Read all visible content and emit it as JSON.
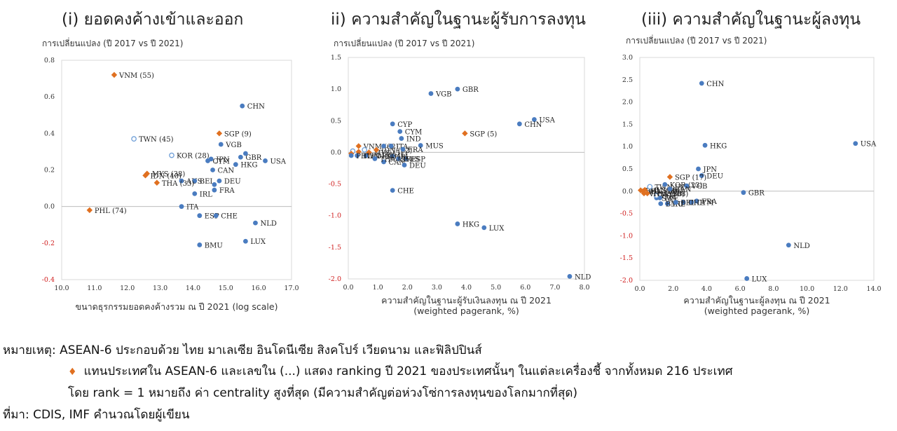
{
  "chart_data": [
    {
      "type": "scatter",
      "title": "(i) ยอดคงค้างเข้าและออก",
      "ylabel": "การเปลี่ยนแปลง (ปี 2017 vs ปี 2021)",
      "xlabel": "ขนาดธุรกรรมยอดคงค้างรวม ณ ปี 2021 (log scale)",
      "xlabel2": "",
      "xlim": [
        10,
        17
      ],
      "ylim": [
        -0.4,
        0.8
      ],
      "xticks": [
        "10.0",
        "11.0",
        "12.0",
        "13.0",
        "14.0",
        "15.0",
        "16.0",
        "17.0"
      ],
      "yticks": [
        "0.8",
        "0.6",
        "0.4",
        "0.2",
        "0.0",
        "-0.2",
        "-0.4"
      ],
      "grid": false,
      "points": [
        {
          "label": "VNM (55)",
          "x": 11.6,
          "y": 0.72,
          "style": "asean"
        },
        {
          "label": "CHN",
          "x": 15.5,
          "y": 0.55,
          "style": "filled"
        },
        {
          "label": "TWN (45)",
          "x": 12.2,
          "y": 0.37,
          "style": "hollow"
        },
        {
          "label": "KOR (28)",
          "x": 13.35,
          "y": 0.28,
          "style": "hollow"
        },
        {
          "label": "SGP (9)",
          "x": 14.8,
          "y": 0.4,
          "style": "asean"
        },
        {
          "label": "JPN",
          "x": 14.55,
          "y": 0.26,
          "style": "filled"
        },
        {
          "label": "CYM",
          "x": 14.45,
          "y": 0.25,
          "style": "filled"
        },
        {
          "label": "VGB",
          "x": 14.85,
          "y": 0.34,
          "style": "filled"
        },
        {
          "label": "GBR",
          "x": 15.45,
          "y": 0.27,
          "style": "filled"
        },
        {
          "label": "",
          "x": 15.6,
          "y": 0.29,
          "style": "filled"
        },
        {
          "label": "USA",
          "x": 16.2,
          "y": 0.25,
          "style": "filled"
        },
        {
          "label": "HKG",
          "x": 15.3,
          "y": 0.23,
          "style": "filled"
        },
        {
          "label": "CAN",
          "x": 14.6,
          "y": 0.2,
          "style": "filled"
        },
        {
          "label": "MYS (38)",
          "x": 12.6,
          "y": 0.18,
          "style": "asean"
        },
        {
          "label": "IDN (40)",
          "x": 12.55,
          "y": 0.17,
          "style": "asean"
        },
        {
          "label": "AUS",
          "x": 13.65,
          "y": 0.14,
          "style": "filled"
        },
        {
          "label": "BEL",
          "x": 14.05,
          "y": 0.14,
          "style": "filled"
        },
        {
          "label": "DEU",
          "x": 14.8,
          "y": 0.14,
          "style": "filled"
        },
        {
          "label": "",
          "x": 14.65,
          "y": 0.12,
          "style": "filled"
        },
        {
          "label": "FRA",
          "x": 14.65,
          "y": 0.09,
          "style": "filled"
        },
        {
          "label": "THA (33)",
          "x": 12.9,
          "y": 0.13,
          "style": "asean"
        },
        {
          "label": "IRL",
          "x": 14.05,
          "y": 0.07,
          "style": "filled"
        },
        {
          "label": "ITA",
          "x": 13.65,
          "y": 0.0,
          "style": "filled"
        },
        {
          "label": "PHL (74)",
          "x": 10.85,
          "y": -0.02,
          "style": "asean"
        },
        {
          "label": "ESP",
          "x": 14.2,
          "y": -0.05,
          "style": "filled"
        },
        {
          "label": "CHE",
          "x": 14.7,
          "y": -0.05,
          "style": "filled"
        },
        {
          "label": "NLD",
          "x": 15.9,
          "y": -0.09,
          "style": "filled"
        },
        {
          "label": "BMU",
          "x": 14.2,
          "y": -0.21,
          "style": "filled"
        },
        {
          "label": "LUX",
          "x": 15.6,
          "y": -0.19,
          "style": "filled"
        }
      ]
    },
    {
      "type": "scatter",
      "title": "ii) ความสำคัญในฐานะผู้รับการลงทุน",
      "ylabel": "การเปลี่ยนแปลง (ปี 2017 vs ปี 2021)",
      "xlabel": "ความสำคัญในฐานะผู้รับเงินลงทุน ณ ปี 2021",
      "xlabel2": "(weighted pagerank, %)",
      "xlim": [
        0,
        8
      ],
      "ylim": [
        -2,
        1.5
      ],
      "xticks": [
        "0.0",
        "1.0",
        "2.0",
        "3.0",
        "4.0",
        "5.0",
        "6.0",
        "7.0",
        "8.0"
      ],
      "yticks": [
        "1.5",
        "1.0",
        "0.5",
        "0.0",
        "-0.5",
        "-1.0",
        "-1.5",
        "-2.0"
      ],
      "grid": false,
      "points": [
        {
          "label": "VNM (62)",
          "x": 0.35,
          "y": 0.1,
          "style": "asean"
        },
        {
          "label": "MYS (51)",
          "x": 0.7,
          "y": 0.0,
          "style": "asean"
        },
        {
          "label": "IDN (32)",
          "x": 0.95,
          "y": 0.04,
          "style": "asean"
        },
        {
          "label": "",
          "x": 0.55,
          "y": 0.04,
          "style": "hollow"
        },
        {
          "label": "",
          "x": 0.15,
          "y": 0.02,
          "style": "hollow"
        },
        {
          "label": "",
          "x": 0.35,
          "y": 0.01,
          "style": "asean"
        },
        {
          "label": "",
          "x": 0.1,
          "y": -0.02,
          "style": "asean"
        },
        {
          "label": "CYP",
          "x": 1.5,
          "y": 0.45,
          "style": "filled"
        },
        {
          "label": "CYM",
          "x": 1.75,
          "y": 0.33,
          "style": "filled"
        },
        {
          "label": "ITA",
          "x": 1.45,
          "y": 0.1,
          "style": "filled"
        },
        {
          "label": "IND",
          "x": 1.8,
          "y": 0.22,
          "style": "filled"
        },
        {
          "label": "MUS",
          "x": 2.45,
          "y": 0.11,
          "style": "filled"
        },
        {
          "label": "VGB",
          "x": 2.8,
          "y": 0.93,
          "style": "filled"
        },
        {
          "label": "GBR",
          "x": 3.7,
          "y": 1.0,
          "style": "filled"
        },
        {
          "label": "SGP (5)",
          "x": 3.95,
          "y": 0.3,
          "style": "asean"
        },
        {
          "label": "USA",
          "x": 6.3,
          "y": 0.52,
          "style": "filled"
        },
        {
          "label": "CHN",
          "x": 5.8,
          "y": 0.45,
          "style": "filled"
        },
        {
          "label": "FRA",
          "x": 1.85,
          "y": 0.05,
          "style": "filled"
        },
        {
          "label": "ESP",
          "x": 1.95,
          "y": -0.1,
          "style": "filled"
        },
        {
          "label": "",
          "x": 1.2,
          "y": 0.1,
          "style": "filled"
        },
        {
          "label": "IRL",
          "x": 1.5,
          "y": -0.06,
          "style": "filled"
        },
        {
          "label": "RUS",
          "x": 1.7,
          "y": -0.1,
          "style": "filled"
        },
        {
          "label": "CAN",
          "x": 1.2,
          "y": -0.15,
          "style": "filled"
        },
        {
          "label": "CHE",
          "x": 1.5,
          "y": -0.6,
          "style": "filled"
        },
        {
          "label": "DEU",
          "x": 1.9,
          "y": -0.2,
          "style": "filled"
        },
        {
          "label": "KOR (34)",
          "x": 0.6,
          "y": -0.05,
          "style": "filled"
        },
        {
          "label": "TWN (92)",
          "x": 0.3,
          "y": -0.05,
          "style": "filled"
        },
        {
          "label": "PHL (111)",
          "x": 0.1,
          "y": -0.05,
          "style": "filled"
        },
        {
          "label": "THA (25)",
          "x": 0.9,
          "y": -0.1,
          "style": "filled"
        },
        {
          "label": "HKG",
          "x": 3.7,
          "y": -1.13,
          "style": "filled"
        },
        {
          "label": "LUX",
          "x": 4.6,
          "y": -1.19,
          "style": "filled"
        },
        {
          "label": "NLD",
          "x": 7.5,
          "y": -1.96,
          "style": "filled"
        }
      ]
    },
    {
      "type": "scatter",
      "title": "(iii) ความสำคัญในฐานะผู้ลงทุน",
      "ylabel": "การเปลี่ยนแปลง (ปี 2017 vs ปี 2021)",
      "xlabel": "ความสำคัญในฐานะผู้ลงทุน ณ ปี 2021",
      "xlabel2": "(weighted pagerank, %)",
      "xlim": [
        0,
        14
      ],
      "ylim": [
        -2,
        3
      ],
      "xticks": [
        "0.0",
        "2.0",
        "4.0",
        "6.0",
        "8.0",
        "10.0",
        "12.0",
        "14.0"
      ],
      "yticks": [
        "3.0",
        "2.5",
        "2.0",
        "1.5",
        "1.0",
        "0.5",
        "0.0",
        "-0.5",
        "-1.0",
        "-1.5",
        "-2.0"
      ],
      "grid": false,
      "points": [
        {
          "label": "CHN",
          "x": 3.7,
          "y": 2.42,
          "style": "filled"
        },
        {
          "label": "USA",
          "x": 12.9,
          "y": 1.07,
          "style": "filled"
        },
        {
          "label": "PHL (88)",
          "x": 0.05,
          "y": 0.02,
          "style": "asean"
        },
        {
          "label": "IDN (60)",
          "x": 0.2,
          "y": 0.0,
          "style": "asean"
        },
        {
          "label": "MYS (44)",
          "x": 0.3,
          "y": 0.03,
          "style": "asean"
        },
        {
          "label": "TWN (35)",
          "x": 0.6,
          "y": 0.1,
          "style": "hollow"
        },
        {
          "label": "HKG",
          "x": 3.9,
          "y": 1.03,
          "style": "filled"
        },
        {
          "label": "JPN",
          "x": 3.5,
          "y": 0.5,
          "style": "filled"
        },
        {
          "label": "DEU",
          "x": 3.7,
          "y": 0.35,
          "style": "filled"
        },
        {
          "label": "SGP (17)",
          "x": 1.8,
          "y": 0.32,
          "style": "asean"
        },
        {
          "label": "KOR (23)",
          "x": 1.5,
          "y": 0.15,
          "style": "filled"
        },
        {
          "label": "VGB",
          "x": 2.8,
          "y": 0.12,
          "style": "filled"
        },
        {
          "label": "GBR",
          "x": 6.2,
          "y": -0.03,
          "style": "filled"
        },
        {
          "label": "CAN",
          "x": 1.8,
          "y": 0.05,
          "style": "filled"
        },
        {
          "label": "CYM",
          "x": 3.1,
          "y": -0.25,
          "style": "filled"
        },
        {
          "label": "FRA",
          "x": 3.4,
          "y": -0.22,
          "style": "filled"
        },
        {
          "label": "CHE",
          "x": 2.6,
          "y": -0.25,
          "style": "filled"
        },
        {
          "label": "SWE",
          "x": 1.0,
          "y": -0.15,
          "style": "filled"
        },
        {
          "label": "ITA",
          "x": 1.2,
          "y": -0.15,
          "style": "filled"
        },
        {
          "label": "IRL",
          "x": 1.65,
          "y": -0.28,
          "style": "filled"
        },
        {
          "label": "BMU",
          "x": 1.25,
          "y": -0.28,
          "style": "filled"
        },
        {
          "label": "BEL",
          "x": 2.15,
          "y": -0.25,
          "style": "filled"
        },
        {
          "label": "ESP",
          "x": 1.0,
          "y": -0.1,
          "style": "hollow"
        },
        {
          "label": "THA (38)",
          "x": 0.45,
          "y": -0.05,
          "style": "asean"
        },
        {
          "label": "VNM (108)",
          "x": 0.25,
          "y": -0.05,
          "style": "asean"
        },
        {
          "label": "NLD",
          "x": 8.9,
          "y": -1.21,
          "style": "filled"
        },
        {
          "label": "LUX",
          "x": 6.4,
          "y": -1.96,
          "style": "filled"
        }
      ]
    }
  ],
  "colors": {
    "asean": "#e07020",
    "filled": "#4a7cc0",
    "hollow": "#6f9fd8",
    "axis_neg": "#d02020"
  },
  "notes": {
    "line1": "หมายเหตุ: ASEAN-6 ประกอบด้วย ไทย มาเลเซีย อินโดนีเซีย สิงคโปร์ เวียดนาม และฟิลิปปินส์",
    "bullet": "♦",
    "line2": "แทนประเทศใน ASEAN-6 และเลขใน (...) แสดง ranking ปี 2021 ของประเทศนั้นๆ ในแต่ละเครื่องชี้ จากทั้งหมด 216 ประเทศ",
    "line3": "โดย rank = 1 หมายถึง ค่า centrality สูงที่สุด (มีความสำคัญต่อห่วงโซ่การลงทุนของโลกมากที่สุด)",
    "source": "ที่มา: CDIS, IMF คำนวณโดยผู้เขียน"
  }
}
